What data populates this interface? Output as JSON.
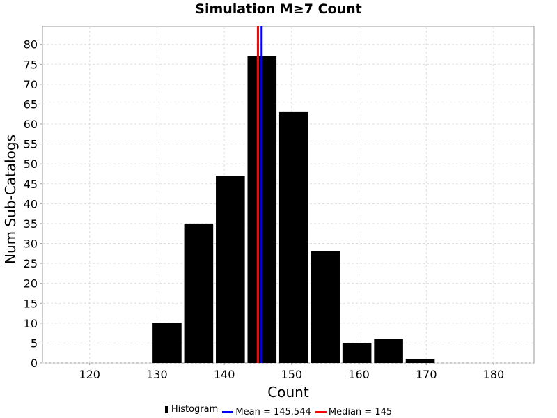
{
  "chart_data": {
    "type": "bar",
    "title": "Simulation M≥7 Count",
    "xlabel": "Count",
    "ylabel": "Num Sub-Catalogs",
    "xlim": [
      113,
      186
    ],
    "ylim": [
      0,
      84.5
    ],
    "xticks": [
      120,
      130,
      140,
      150,
      160,
      170,
      180
    ],
    "yticks": [
      0,
      5,
      10,
      15,
      20,
      25,
      30,
      35,
      40,
      45,
      50,
      55,
      60,
      65,
      70,
      75,
      80
    ],
    "grid": true,
    "bin_width": 4.7,
    "bar_width": 4.3,
    "series": [
      {
        "name": "Histogram",
        "color": "#000000",
        "bin_centers": [
          131.5,
          136.2,
          140.9,
          145.6,
          150.3,
          155.0,
          159.7,
          164.4,
          169.1
        ],
        "values": [
          10,
          35,
          47,
          77,
          63,
          28,
          5,
          6,
          1
        ]
      }
    ],
    "vlines": [
      {
        "name": "Mean = 145.544",
        "x": 145.544,
        "color": "#0000ff"
      },
      {
        "name": "Median = 145",
        "x": 145,
        "color": "#ff0000"
      }
    ],
    "legend_position": "bottom-center"
  }
}
